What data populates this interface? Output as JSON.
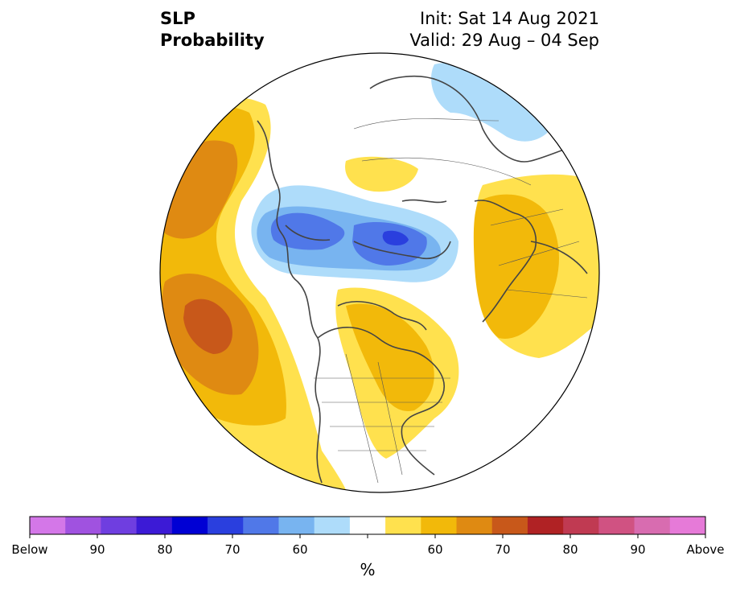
{
  "title": {
    "left_line1": "SLP",
    "left_line2": "Probability",
    "right_line1": "Init: Sat 14 Aug 2021",
    "right_line2": "Valid: 29 Aug – 04 Sep"
  },
  "colorbar": {
    "unit": "%",
    "colors": [
      "#d477e8",
      "#a052e0",
      "#6f3ee0",
      "#3c1ad6",
      "#0000d4",
      "#2a3fde",
      "#5078e8",
      "#78b4f0",
      "#aedcfa",
      "#ffffff",
      "#ffe14e",
      "#f2b90a",
      "#df8a12",
      "#c8581a",
      "#b02224",
      "#c03a52",
      "#d05282",
      "#d86cb0",
      "#e67ad8"
    ],
    "labels": [
      "Below",
      "90",
      "80",
      "70",
      "60",
      "60",
      "70",
      "80",
      "90",
      "Above"
    ]
  },
  "legend_colors": {
    "below_light": "#aedcfa",
    "below_mid": "#78b4f0",
    "below_strong": "#5078e8",
    "below_deep": "#2a3fde",
    "above_light": "#ffe14e",
    "above_mid": "#f2b90a",
    "above_strong": "#df8a12",
    "above_deep": "#c8581a"
  }
}
